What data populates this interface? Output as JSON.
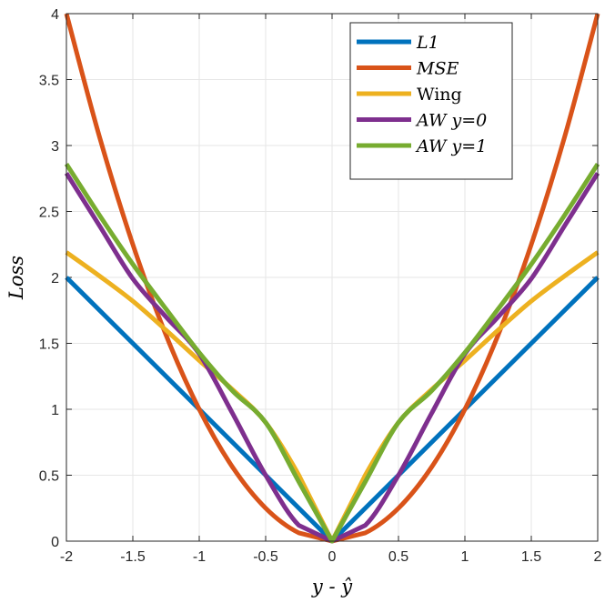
{
  "chart_data": {
    "type": "line",
    "title": "",
    "xlabel": "y - ŷ",
    "ylabel": "Loss",
    "xlim": [
      -2,
      2
    ],
    "ylim": [
      0,
      4
    ],
    "grid": true,
    "legend_position": "top-right",
    "xticks": [
      "-2",
      "-1.5",
      "-1",
      "-0.5",
      "0",
      "0.5",
      "1",
      "1.5",
      "2"
    ],
    "yticks": [
      "0",
      "0.5",
      "1",
      "1.5",
      "2",
      "2.5",
      "3",
      "3.5",
      "4"
    ],
    "x": [
      -2,
      -1.75,
      -1.5,
      -1.25,
      -1,
      -0.75,
      -0.5,
      -0.25,
      0,
      0.25,
      0.5,
      0.75,
      1,
      1.25,
      1.5,
      1.75,
      2
    ],
    "series": [
      {
        "name": "L1",
        "color": "#0072BD",
        "values": [
          2,
          1.75,
          1.5,
          1.25,
          1,
          0.75,
          0.5,
          0.25,
          0,
          0.25,
          0.5,
          0.75,
          1,
          1.25,
          1.5,
          1.75,
          2
        ]
      },
      {
        "name": "MSE",
        "color": "#D95319",
        "values": [
          4,
          3.0625,
          2.25,
          1.5625,
          1,
          0.5625,
          0.25,
          0.0625,
          0,
          0.0625,
          0.25,
          0.5625,
          1,
          1.5625,
          2.25,
          3.0625,
          4
        ]
      },
      {
        "name": "Wing",
        "color": "#EDB120",
        "values": [
          2.19,
          2.01,
          1.82,
          1.6,
          1.37,
          1.15,
          0.9,
          0.5,
          0,
          0.5,
          0.9,
          1.15,
          1.37,
          1.6,
          1.82,
          2.01,
          2.19
        ]
      },
      {
        "name": "AW y=0",
        "color": "#7E2F8E",
        "values": [
          2.79,
          2.39,
          1.99,
          1.7,
          1.42,
          0.97,
          0.5,
          0.12,
          0,
          0.12,
          0.5,
          0.97,
          1.42,
          1.7,
          1.99,
          2.39,
          2.79
        ]
      },
      {
        "name": "AW y=1",
        "color": "#77AC30",
        "values": [
          2.86,
          2.47,
          2.1,
          1.76,
          1.43,
          1.14,
          0.9,
          0.45,
          0,
          0.45,
          0.9,
          1.14,
          1.43,
          1.76,
          2.1,
          2.47,
          2.86
        ]
      }
    ]
  }
}
